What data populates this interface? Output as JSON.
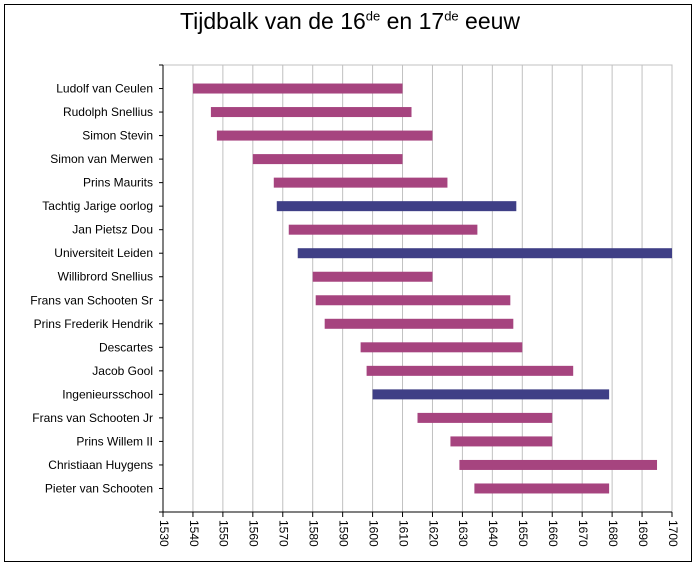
{
  "chart_data": {
    "type": "bar",
    "orientation": "horizontal-range",
    "title": {
      "part1": "Tijdbalk van de 16",
      "sup1": "de",
      "part2": " en 17",
      "sup2": "de",
      "part3": " eeuw"
    },
    "xlabel": "",
    "ylabel": "",
    "xlim": [
      1530,
      1700
    ],
    "xticks": [
      1530,
      1540,
      1550,
      1560,
      1570,
      1580,
      1590,
      1600,
      1610,
      1620,
      1630,
      1640,
      1650,
      1660,
      1670,
      1680,
      1690,
      1700
    ],
    "grid": true,
    "colors": {
      "person": "#a6447f",
      "event": "#3f3f86",
      "plot_bg": "#ffffff",
      "grid": "#c0c0c0"
    },
    "bars": [
      {
        "label": "Ludolf van Ceulen",
        "start": 1540,
        "end": 1610,
        "kind": "person"
      },
      {
        "label": "Rudolph Snellius",
        "start": 1546,
        "end": 1613,
        "kind": "person"
      },
      {
        "label": "Simon Stevin",
        "start": 1548,
        "end": 1620,
        "kind": "person"
      },
      {
        "label": "Simon van Merwen",
        "start": 1560,
        "end": 1610,
        "kind": "person"
      },
      {
        "label": "Prins Maurits",
        "start": 1567,
        "end": 1625,
        "kind": "person"
      },
      {
        "label": "Tachtig Jarige oorlog",
        "start": 1568,
        "end": 1648,
        "kind": "event"
      },
      {
        "label": "Jan Pietsz Dou",
        "start": 1572,
        "end": 1635,
        "kind": "person"
      },
      {
        "label": "Universiteit Leiden",
        "start": 1575,
        "end": 1700,
        "kind": "event"
      },
      {
        "label": "Willibrord Snellius",
        "start": 1580,
        "end": 1620,
        "kind": "person"
      },
      {
        "label": "Frans van Schooten Sr",
        "start": 1581,
        "end": 1646,
        "kind": "person"
      },
      {
        "label": "Prins Frederik Hendrik",
        "start": 1584,
        "end": 1647,
        "kind": "person"
      },
      {
        "label": "Descartes",
        "start": 1596,
        "end": 1650,
        "kind": "person"
      },
      {
        "label": "Jacob Gool",
        "start": 1598,
        "end": 1667,
        "kind": "person"
      },
      {
        "label": "Ingenieursschool",
        "start": 1600,
        "end": 1679,
        "kind": "event"
      },
      {
        "label": "Frans van Schooten Jr",
        "start": 1615,
        "end": 1660,
        "kind": "person"
      },
      {
        "label": "Prins Willem II",
        "start": 1626,
        "end": 1660,
        "kind": "person"
      },
      {
        "label": "Christiaan Huygens",
        "start": 1629,
        "end": 1695,
        "kind": "person"
      },
      {
        "label": "Pieter van Schooten",
        "start": 1634,
        "end": 1679,
        "kind": "person"
      }
    ]
  }
}
